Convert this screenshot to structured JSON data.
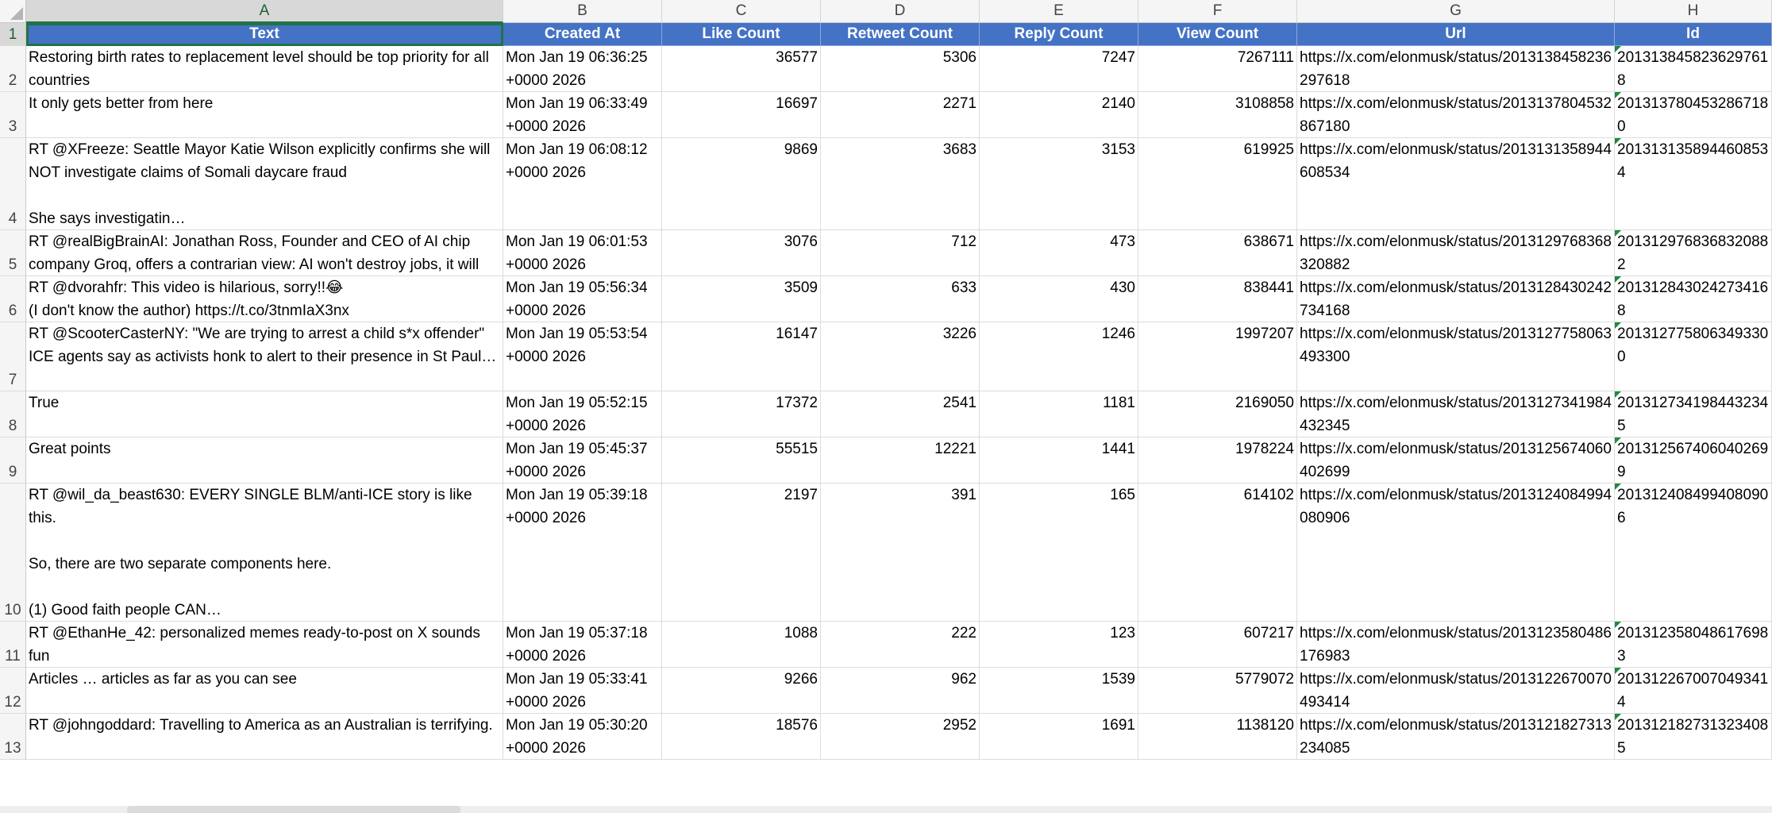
{
  "columns": [
    "A",
    "B",
    "C",
    "D",
    "E",
    "F",
    "G",
    "H"
  ],
  "headers": [
    "Text",
    "Created At",
    "Like Count",
    "Retweet Count",
    "Reply Count",
    "View Count",
    "Url",
    "Id"
  ],
  "row_numbers": [
    "1",
    "2",
    "3",
    "4",
    "5",
    "6",
    "7",
    "8",
    "9",
    "10",
    "11",
    "12",
    "13"
  ],
  "rows": [
    {
      "text": "Restoring birth rates to replacement level should be top priority for all countries",
      "created": "Mon Jan 19 06:36:25 +0000 2026",
      "likes": "36577",
      "retweets": "5306",
      "replies": "7247",
      "views": "7267111",
      "url": "https://x.com/elonmusk/status/2013138458236297618",
      "id": "2013138458236297618"
    },
    {
      "text": "It only gets better from here",
      "created": "Mon Jan 19 06:33:49 +0000 2026",
      "likes": "16697",
      "retweets": "2271",
      "replies": "2140",
      "views": "3108858",
      "url": "https://x.com/elonmusk/status/2013137804532867180",
      "id": "2013137804532867180"
    },
    {
      "text": "RT @XFreeze: Seattle Mayor Katie Wilson explicitly confirms she will NOT investigate claims of Somali daycare fraud\n\nShe says investigatin…",
      "created": "Mon Jan 19 06:08:12 +0000 2026",
      "likes": "9869",
      "retweets": "3683",
      "replies": "3153",
      "views": "619925",
      "url": "https://x.com/elonmusk/status/2013131358944608534",
      "id": "2013131358944608534"
    },
    {
      "text": "RT @realBigBrainAI: Jonathan Ross, Founder and CEO of AI chip company Groq, offers a contrarian view: AI won't destroy jobs, it will create…",
      "created": "Mon Jan 19 06:01:53 +0000 2026",
      "likes": "3076",
      "retweets": "712",
      "replies": "473",
      "views": "638671",
      "url": "https://x.com/elonmusk/status/2013129768368320882",
      "id": "2013129768368320882"
    },
    {
      "text": "RT @dvorahfr: This video is hilarious, sorry!!😂\n(I don't know the author) https://t.co/3tnmIaX3nx",
      "created": "Mon Jan 19 05:56:34 +0000 2026",
      "likes": "3509",
      "retweets": "633",
      "replies": "430",
      "views": "838441",
      "url": "https://x.com/elonmusk/status/2013128430242734168",
      "id": "2013128430242734168"
    },
    {
      "text": "RT @ScooterCasterNY: \"We are trying to arrest a child s*x offender\" ICE agents say as activists honk to alert to their presence in St Paul…",
      "created": "Mon Jan 19 05:53:54 +0000 2026",
      "likes": "16147",
      "retweets": "3226",
      "replies": "1246",
      "views": "1997207",
      "url": "https://x.com/elonmusk/status/2013127758063493300",
      "id": "2013127758063493300"
    },
    {
      "text": "True",
      "created": "Mon Jan 19 05:52:15 +0000 2026",
      "likes": "17372",
      "retweets": "2541",
      "replies": "1181",
      "views": "2169050",
      "url": "https://x.com/elonmusk/status/2013127341984432345",
      "id": "2013127341984432345"
    },
    {
      "text": "Great points",
      "created": "Mon Jan 19 05:45:37 +0000 2026",
      "likes": "55515",
      "retweets": "12221",
      "replies": "1441",
      "views": "1978224",
      "url": "https://x.com/elonmusk/status/2013125674060402699",
      "id": "2013125674060402699"
    },
    {
      "text": "RT @wil_da_beast630: EVERY SINGLE BLM/anti-ICE story is like this.\n\nSo, there are two separate components here.\n\n(1) Good faith people CAN…",
      "created": "Mon Jan 19 05:39:18 +0000 2026",
      "likes": "2197",
      "retweets": "391",
      "replies": "165",
      "views": "614102",
      "url": "https://x.com/elonmusk/status/2013124084994080906",
      "id": "2013124084994080906"
    },
    {
      "text": "RT @EthanHe_42: personalized memes ready-to-post on X sounds fun",
      "created": "Mon Jan 19 05:37:18 +0000 2026",
      "likes": "1088",
      "retweets": "222",
      "replies": "123",
      "views": "607217",
      "url": "https://x.com/elonmusk/status/2013123580486176983",
      "id": "2013123580486176983"
    },
    {
      "text": "Articles … articles as far as you can see",
      "created": "Mon Jan 19 05:33:41 +0000 2026",
      "likes": "9266",
      "retweets": "962",
      "replies": "1539",
      "views": "5779072",
      "url": "https://x.com/elonmusk/status/2013122670070493414",
      "id": "2013122670070493414"
    },
    {
      "text": "RT @johngoddard: Travelling to America as an Australian is terrifying.",
      "created": "Mon Jan 19 05:30:20 +0000 2026",
      "likes": "18576",
      "retweets": "2952",
      "replies": "1691",
      "views": "1138120",
      "url": "https://x.com/elonmusk/status/2013121827313234085",
      "id": "2013121827313234085"
    }
  ],
  "colors": {
    "header_fill": "#4472c4",
    "selection": "#217346",
    "grid": "#dcdcdc"
  }
}
